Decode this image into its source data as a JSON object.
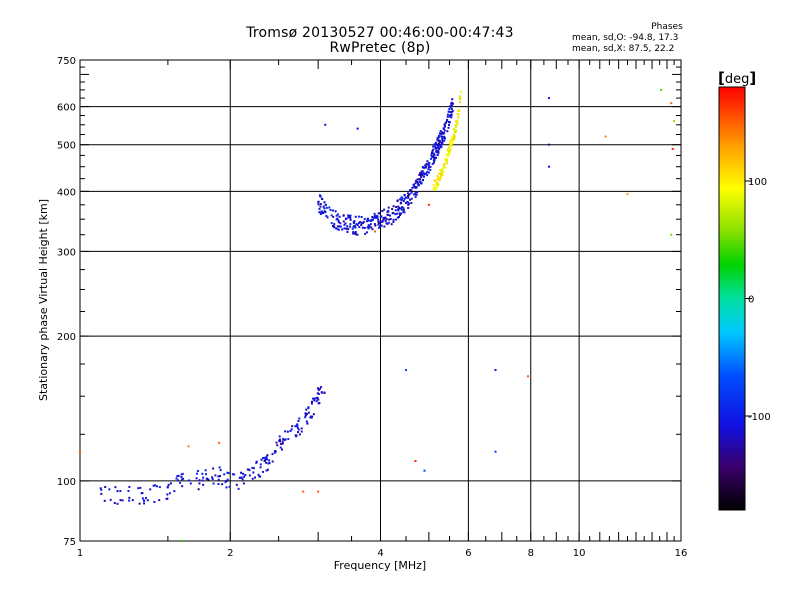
{
  "title": {
    "line1": "Tromsø 20130527 00:46:00-00:47:43",
    "line2": "RwPretec (8p)"
  },
  "stats": {
    "heading": "Phases",
    "line_o": "mean, sd,O: -94.8, 17.3",
    "line_x": "mean, sd,X:  87.5, 22.2"
  },
  "colorbar": {
    "unit": "deg",
    "range": [
      -180,
      180
    ],
    "ticks": [
      100,
      0,
      -100
    ],
    "tick_labels": [
      "100",
      "0",
      "-100"
    ]
  },
  "chart_data": {
    "type": "scatter",
    "xlabel": "Frequency [MHz]",
    "ylabel": "Stationary phase Virtual Height [km]",
    "x_scale": "log",
    "y_scale": "log",
    "xlim": [
      1,
      16
    ],
    "ylim": [
      75,
      750
    ],
    "x_ticks": [
      1,
      2,
      4,
      6,
      8,
      10,
      16
    ],
    "x_tick_labels": [
      "1",
      "2",
      "4",
      "6",
      "8",
      "10",
      "16"
    ],
    "y_ticks": [
      75,
      100,
      200,
      300,
      400,
      500,
      600,
      750
    ],
    "y_tick_labels": [
      "75",
      "100",
      "200",
      "300",
      "400",
      "500",
      "600",
      "750"
    ],
    "gridlines_x": [
      2,
      4,
      6,
      8,
      10
    ],
    "gridlines_y": [
      100,
      200,
      300,
      400,
      500,
      600
    ],
    "series": [
      {
        "name": "E-region O trace (blue)",
        "phase_deg": -110,
        "kind": "trace",
        "points": [
          [
            1.1,
            93
          ],
          [
            1.3,
            93
          ],
          [
            1.4,
            94
          ],
          [
            1.5,
            96
          ],
          [
            1.6,
            100
          ],
          [
            1.7,
            100
          ],
          [
            1.8,
            102
          ],
          [
            1.9,
            103
          ],
          [
            2.0,
            100
          ],
          [
            2.1,
            101
          ],
          [
            2.2,
            104
          ],
          [
            2.3,
            106
          ],
          [
            2.4,
            110
          ],
          [
            2.5,
            118
          ],
          [
            2.6,
            123
          ],
          [
            2.7,
            128
          ],
          [
            2.8,
            132
          ],
          [
            2.9,
            140
          ],
          [
            3.0,
            150
          ],
          [
            3.1,
            160
          ]
        ]
      },
      {
        "name": "F-region O trace (blue)",
        "phase_deg": -110,
        "kind": "trace",
        "points": [
          [
            3.0,
            380
          ],
          [
            3.1,
            365
          ],
          [
            3.2,
            352
          ],
          [
            3.4,
            343
          ],
          [
            3.6,
            340
          ],
          [
            3.8,
            342
          ],
          [
            4.0,
            348
          ],
          [
            4.2,
            357
          ],
          [
            4.4,
            372
          ],
          [
            4.6,
            392
          ],
          [
            4.8,
            420
          ],
          [
            5.0,
            455
          ],
          [
            5.2,
            495
          ],
          [
            5.4,
            540
          ],
          [
            5.5,
            575
          ],
          [
            5.6,
            610
          ]
        ]
      },
      {
        "name": "F-region X trace (yellow)",
        "phase_deg": 95,
        "kind": "trace",
        "points": [
          [
            5.1,
            410
          ],
          [
            5.2,
            420
          ],
          [
            5.3,
            440
          ],
          [
            5.4,
            460
          ],
          [
            5.5,
            490
          ],
          [
            5.6,
            520
          ],
          [
            5.7,
            560
          ],
          [
            5.75,
            600
          ],
          [
            5.8,
            640
          ]
        ]
      },
      {
        "name": "Scattered echoes",
        "kind": "isolated",
        "points": [
          [
            1.0,
            115,
            150
          ],
          [
            1.6,
            75,
            40
          ],
          [
            1.65,
            118,
            140
          ],
          [
            1.9,
            120,
            150
          ],
          [
            2.8,
            95,
            150
          ],
          [
            3.0,
            95,
            150
          ],
          [
            3.1,
            550,
            -120
          ],
          [
            3.6,
            540,
            -110
          ],
          [
            3.9,
            330,
            150
          ],
          [
            4.5,
            170,
            -80
          ],
          [
            4.7,
            110,
            170
          ],
          [
            4.9,
            105,
            -80
          ],
          [
            5.0,
            375,
            170
          ],
          [
            6.8,
            170,
            -110
          ],
          [
            6.8,
            115,
            -80
          ],
          [
            7.9,
            165,
            150
          ],
          [
            8.7,
            625,
            -100
          ],
          [
            8.7,
            500,
            -130
          ],
          [
            8.7,
            450,
            -110
          ],
          [
            11.3,
            520,
            140
          ],
          [
            12.5,
            395,
            130
          ],
          [
            14.6,
            650,
            40
          ],
          [
            15.3,
            610,
            150
          ],
          [
            15.5,
            560,
            60
          ],
          [
            15.4,
            490,
            170
          ],
          [
            15.3,
            325,
            50
          ]
        ]
      }
    ]
  }
}
